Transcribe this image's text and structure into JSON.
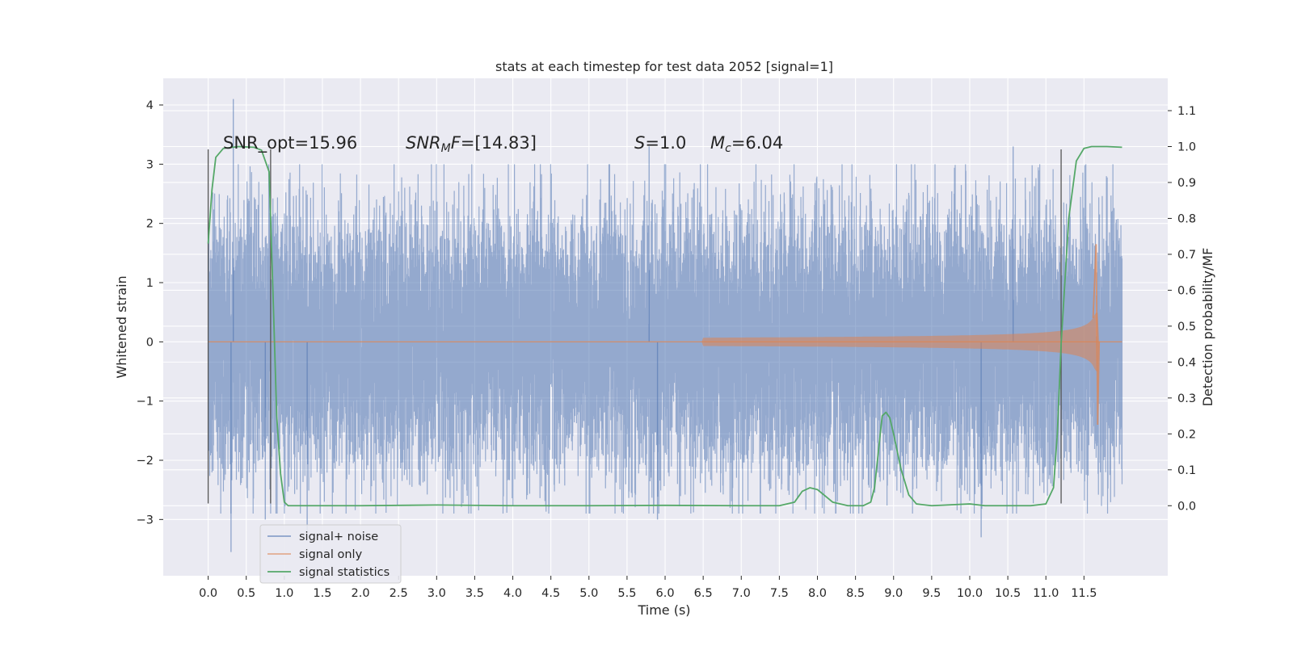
{
  "chart_data": {
    "type": "line",
    "title": "stats at each timestep for test data 2052 [signal=1]",
    "xlabel": "Time (s)",
    "ylabel_left": "Whitened strain",
    "ylabel_right": "Detection probability/MF",
    "xlim": [
      -0.59,
      12.6
    ],
    "ylim_left": [
      -3.95,
      4.45
    ],
    "ylim_right": [
      -0.195,
      1.19
    ],
    "x_ticks": [
      "0.0",
      "0.5",
      "1.0",
      "1.5",
      "2.0",
      "2.5",
      "3.0",
      "3.5",
      "4.0",
      "4.5",
      "5.0",
      "5.5",
      "6.0",
      "6.5",
      "7.0",
      "7.5",
      "8.0",
      "8.5",
      "9.0",
      "9.5",
      "10.0",
      "10.5",
      "11.0",
      "11.5"
    ],
    "y_ticks_left": [
      "4",
      "3",
      "2",
      "1",
      "0",
      "−1",
      "−2",
      "−3"
    ],
    "y_ticks_right": [
      "1.1",
      "1.0",
      "0.9",
      "0.8",
      "0.7",
      "0.6",
      "0.5",
      "0.4",
      "0.3",
      "0.2",
      "0.1",
      "0.0"
    ],
    "grid": true,
    "legend_position": "lower-left",
    "series": [
      {
        "name": "signal+ noise",
        "color": "#4c72b0",
        "axis": "left",
        "x_range": [
          0.0,
          12.0
        ],
        "typical_envelope": [
          -1.5,
          1.5
        ],
        "peaks": [
          [
            0.33,
            4.1
          ],
          [
            0.3,
            -3.55
          ],
          [
            5.79,
            3.3
          ],
          [
            10.57,
            3.3
          ],
          [
            10.15,
            -3.3
          ],
          [
            5.9,
            -3.0
          ],
          [
            1.3,
            -3.2
          ],
          [
            0.75,
            -3.0
          ]
        ]
      },
      {
        "name": "signal only",
        "color": "#dd8452",
        "axis": "left",
        "description_points": [
          [
            0.0,
            0.0
          ],
          [
            6.5,
            0.0
          ],
          [
            7.0,
            0.05
          ],
          [
            8.0,
            0.12
          ],
          [
            9.0,
            0.15
          ],
          [
            10.0,
            0.2
          ],
          [
            11.0,
            0.28
          ],
          [
            11.5,
            0.45
          ],
          [
            11.65,
            1.65
          ],
          [
            11.68,
            -1.4
          ],
          [
            11.7,
            0.0
          ],
          [
            12.0,
            0.0
          ]
        ]
      },
      {
        "name": "signal statistics",
        "color": "#55a868",
        "axis": "right",
        "x": [
          0.0,
          0.05,
          0.1,
          0.2,
          0.4,
          0.6,
          0.7,
          0.8,
          0.85,
          0.9,
          0.95,
          1.0,
          1.05,
          1.1,
          2.0,
          3.0,
          4.0,
          5.0,
          6.0,
          7.0,
          7.5,
          7.7,
          7.8,
          7.9,
          8.0,
          8.2,
          8.4,
          8.6,
          8.7,
          8.75,
          8.8,
          8.85,
          8.9,
          8.95,
          9.0,
          9.1,
          9.2,
          9.3,
          9.5,
          10.0,
          10.2,
          10.5,
          10.8,
          11.0,
          11.1,
          11.15,
          11.2,
          11.3,
          11.4,
          11.5,
          11.6,
          11.8,
          12.0
        ],
        "y": [
          0.73,
          0.88,
          0.97,
          0.995,
          1.0,
          0.998,
          0.99,
          0.93,
          0.6,
          0.25,
          0.09,
          0.01,
          0.0,
          0.0,
          0.0,
          0.002,
          0.0,
          0.0,
          0.001,
          0.0,
          0.0,
          0.01,
          0.04,
          0.05,
          0.045,
          0.01,
          0.0,
          0.0,
          0.01,
          0.05,
          0.15,
          0.25,
          0.26,
          0.245,
          0.2,
          0.1,
          0.03,
          0.005,
          0.0,
          0.005,
          0.0,
          0.0,
          0.0,
          0.005,
          0.05,
          0.2,
          0.45,
          0.8,
          0.96,
          0.995,
          1.0,
          1.0,
          0.998
        ]
      }
    ],
    "vertical_lines": [
      {
        "x": 0.0,
        "ymin": -2.73,
        "ymax": 3.25
      },
      {
        "x": 0.82,
        "ymin": -2.73,
        "ymax": 3.25
      },
      {
        "x": 11.2,
        "ymin": -2.73,
        "ymax": 3.25
      }
    ],
    "annotations": [
      {
        "parts": [
          {
            "t": "SNR_opt=15.96",
            "style": "normal"
          }
        ]
      },
      {
        "parts": [
          {
            "t": "SNR",
            "style": "italic"
          },
          {
            "t": "M",
            "style": "sub-italic"
          },
          {
            "t": "F",
            "style": "italic"
          },
          {
            "t": "=[14.83]",
            "style": "normal"
          }
        ]
      },
      {
        "parts": [
          {
            "t": "S",
            "style": "italic"
          },
          {
            "t": "=1.0",
            "style": "normal"
          }
        ]
      },
      {
        "parts": [
          {
            "t": "M",
            "style": "italic"
          },
          {
            "t": "c",
            "style": "sub-italic"
          },
          {
            "t": "=6.04",
            "style": "normal"
          }
        ]
      }
    ]
  }
}
